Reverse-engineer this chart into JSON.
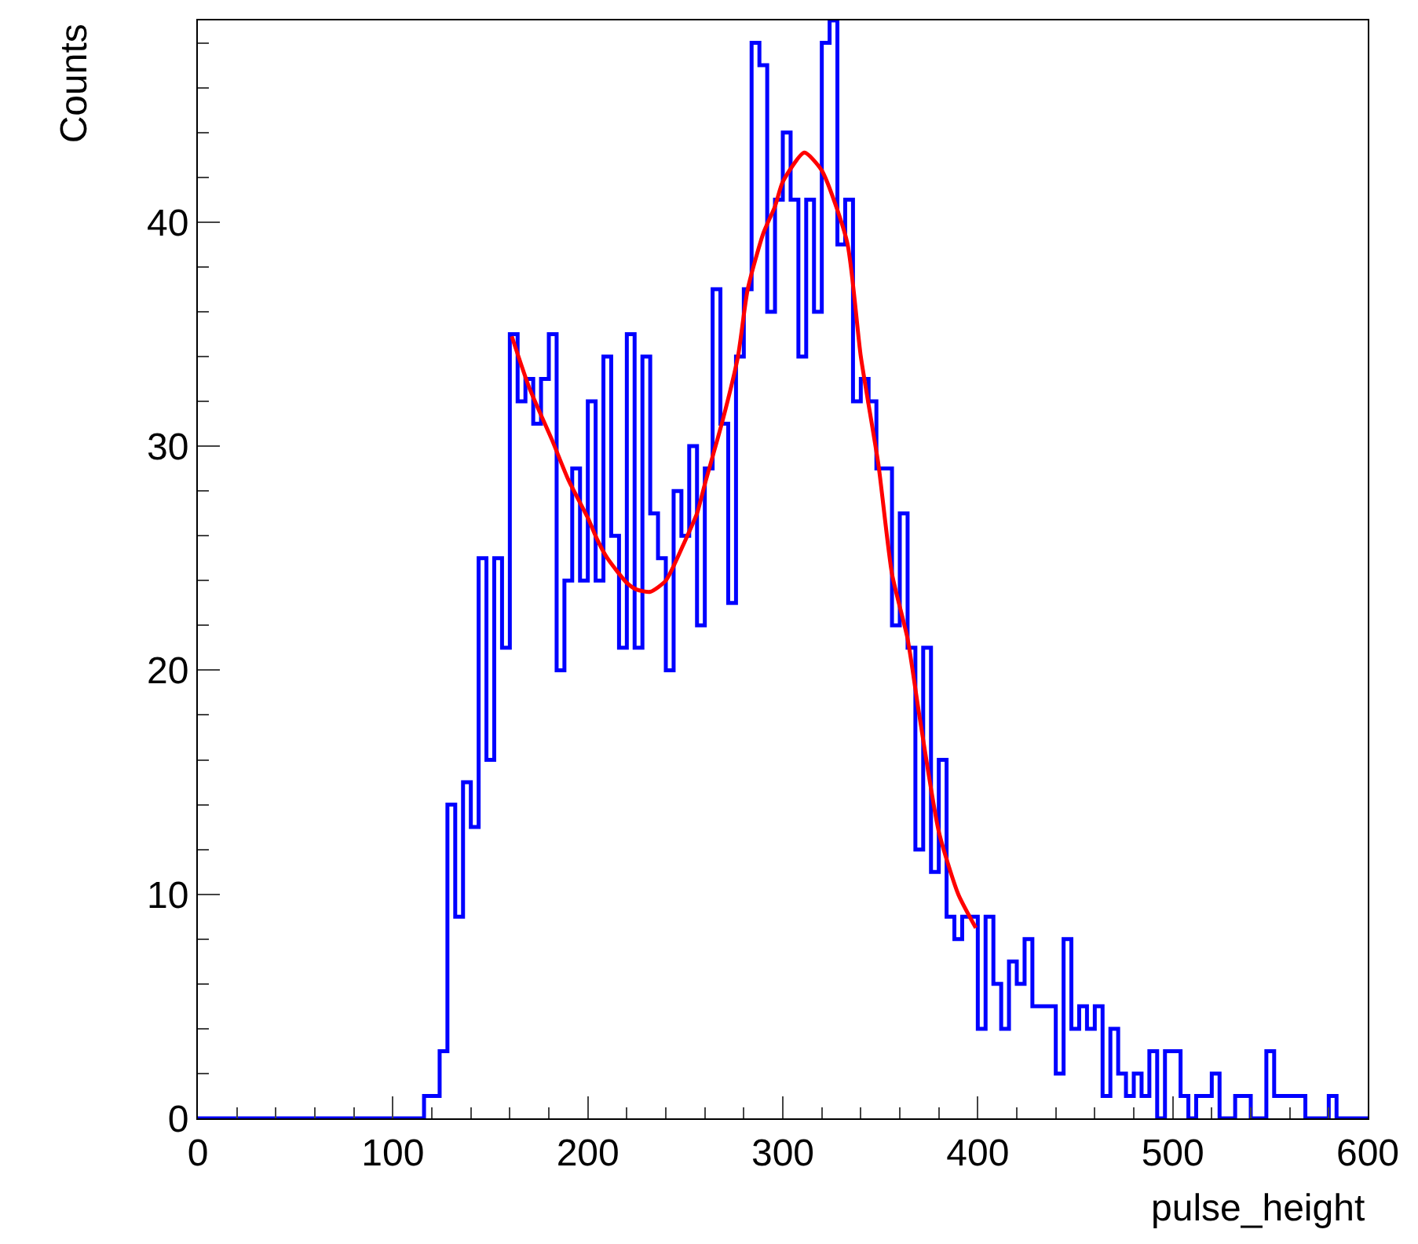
{
  "chart_data": {
    "type": "histogram",
    "xlabel": "pulse_height",
    "ylabel": "Counts",
    "color": "#0000ff",
    "bins": [
      0,
      4,
      8,
      12,
      16,
      20,
      24,
      28,
      32,
      36,
      40,
      44,
      48,
      52,
      56,
      60,
      64,
      68,
      72,
      76,
      80,
      84,
      88,
      92,
      96,
      100,
      104,
      108,
      112,
      116,
      120,
      124,
      128,
      132,
      136,
      140,
      144,
      148,
      152,
      156,
      160,
      164,
      168,
      172,
      176,
      180,
      184,
      188,
      192,
      196,
      200,
      204,
      208,
      212,
      216,
      220,
      224,
      228,
      232,
      236,
      240,
      244,
      248,
      252,
      256,
      260,
      264,
      268,
      272,
      276,
      280,
      284,
      288,
      292,
      296,
      300,
      304,
      308,
      312,
      316,
      320,
      324,
      328,
      332,
      336,
      340,
      344,
      348,
      352,
      356,
      360,
      364,
      368,
      372,
      376,
      380,
      384,
      388,
      392,
      396,
      400,
      404,
      408,
      412,
      416,
      420,
      424,
      428,
      432,
      436,
      440,
      444,
      448,
      452,
      456,
      460,
      464,
      468,
      472,
      476,
      480,
      484,
      488,
      492,
      496,
      500,
      504,
      508,
      512,
      516,
      520,
      524,
      528,
      532,
      536,
      540,
      544,
      548,
      552,
      556,
      560,
      564,
      568,
      572,
      576,
      580,
      584,
      588,
      592,
      596,
      600
    ],
    "values": [
      0,
      0,
      0,
      0,
      0,
      0,
      0,
      0,
      0,
      0,
      0,
      0,
      0,
      0,
      0,
      0,
      0,
      0,
      0,
      0,
      0,
      0,
      0,
      0,
      0,
      0,
      0,
      0,
      0,
      1,
      1,
      3,
      14,
      9,
      15,
      13,
      25,
      16,
      25,
      21,
      35,
      32,
      33,
      31,
      33,
      35,
      20,
      24,
      29,
      24,
      32,
      24,
      34,
      26,
      21,
      35,
      21,
      34,
      27,
      25,
      20,
      28,
      26,
      30,
      22,
      29,
      37,
      31,
      23,
      34,
      37,
      48,
      47,
      36,
      41,
      44,
      41,
      34,
      41,
      36,
      48,
      49,
      39,
      41,
      32,
      33,
      32,
      29,
      29,
      22,
      27,
      21,
      12,
      21,
      11,
      16,
      9,
      8,
      9,
      9,
      4,
      9,
      6,
      4,
      7,
      6,
      8,
      5,
      5,
      5,
      2,
      8,
      4,
      5,
      4,
      5,
      1,
      4,
      2,
      1,
      2,
      1,
      3,
      0,
      3,
      3,
      1,
      0,
      1,
      1,
      2,
      0,
      0,
      1,
      1,
      0,
      0,
      3,
      1,
      1,
      1,
      1,
      0,
      0,
      0,
      1,
      0,
      0,
      0,
      0
    ],
    "series": [
      {
        "type": "line",
        "color": "#ff0000",
        "x": [
          161,
          170,
          182,
          190,
          200,
          205,
          210,
          220,
          225,
          232,
          240,
          250,
          256,
          260,
          269,
          277,
          282,
          290,
          296,
          300,
          311,
          320,
          333,
          340,
          349,
          356,
          364,
          370,
          380,
          390,
          399
        ],
        "values": [
          34.9,
          32.6,
          30.2,
          28.5,
          26.8,
          25.8,
          25,
          23.9,
          23.6,
          23.5,
          24,
          25.8,
          27,
          28.3,
          31.1,
          34,
          37,
          39.5,
          40.7,
          41.8,
          43.1,
          42.3,
          39.1,
          34,
          29.2,
          24.3,
          21.4,
          18,
          12.8,
          10,
          8.5
        ]
      }
    ],
    "xlim": [
      0,
      600
    ],
    "xticks": [
      0,
      100,
      200,
      300,
      400,
      500,
      600
    ],
    "ylim": [
      0,
      49
    ],
    "yticks": [
      0,
      10,
      20,
      30,
      40
    ]
  }
}
